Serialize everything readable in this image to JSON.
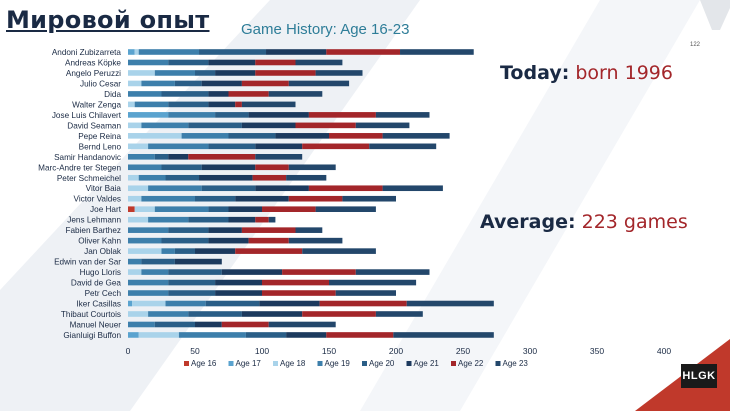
{
  "slide": {
    "title": "Мировой опыт",
    "page_number": "122",
    "logo_text": "HLGK"
  },
  "callouts": {
    "today_label": "Today:",
    "today_value": "born 1996",
    "average_label": "Average:",
    "average_value": "223 games"
  },
  "colors": {
    "accent_red": "#a3262a",
    "navy": "#1a2a44",
    "title_teal": "#2e7d98"
  },
  "chart_data": {
    "type": "bar",
    "orientation": "horizontal",
    "stacked": true,
    "title": "Game History: Age 16-23",
    "xlabel": "",
    "ylabel": "",
    "xlim": [
      0,
      400
    ],
    "xticks": [
      0,
      50,
      100,
      150,
      200,
      250,
      300,
      350,
      400
    ],
    "grid": false,
    "legend_position": "bottom",
    "series_names": [
      "Age 16",
      "Age 17",
      "Age 18",
      "Age 19",
      "Age 20",
      "Age 21",
      "Age 22",
      "Age 23"
    ],
    "series_colors": [
      "#c0392b",
      "#5aa3cf",
      "#a9d3ea",
      "#3d7fab",
      "#2a5e87",
      "#1c3a5e",
      "#a3262a",
      "#23476b"
    ],
    "categories": [
      "Andoni Zubizarreta",
      "Andreas Köpke",
      "Angelo Peruzzi",
      "Julio Cesar",
      "Dida",
      "Walter Zenga",
      "Jose Luis Chilavert",
      "David Seaman",
      "Pepe Reina",
      "Bernd Leno",
      "Samir Handanovic",
      "Marc-Andre ter Stegen",
      "Peter Schmeichel",
      "Vitor Baia",
      "Victor Valdes",
      "Joe Hart",
      "Jens Lehmann",
      "Fabien Barthez",
      "Oliver Kahn",
      "Jan Oblak",
      "Edwin van der Sar",
      "Hugo Lloris",
      "David de Gea",
      "Petr Cech",
      "Iker Casillas",
      "Thibaut Courtois",
      "Manuel Neuer",
      "Gianluigi Buffon"
    ],
    "series": [
      {
        "name": "Age 16",
        "values": [
          0,
          0,
          0,
          0,
          0,
          0,
          0,
          0,
          0,
          0,
          0,
          0,
          0,
          0,
          0,
          5,
          0,
          0,
          0,
          0,
          0,
          0,
          0,
          0,
          0,
          0,
          0,
          0
        ]
      },
      {
        "name": "Age 17",
        "values": [
          5,
          0,
          0,
          0,
          0,
          0,
          30,
          0,
          0,
          0,
          0,
          0,
          0,
          0,
          0,
          0,
          0,
          0,
          0,
          0,
          0,
          0,
          0,
          0,
          3,
          0,
          0,
          8
        ]
      },
      {
        "name": "Age 18",
        "values": [
          3,
          0,
          20,
          10,
          0,
          5,
          0,
          10,
          40,
          15,
          0,
          0,
          8,
          15,
          10,
          15,
          15,
          0,
          0,
          25,
          0,
          10,
          0,
          0,
          25,
          15,
          0,
          30
        ]
      },
      {
        "name": "Age 19",
        "values": [
          45,
          30,
          30,
          25,
          25,
          25,
          35,
          35,
          35,
          45,
          20,
          25,
          20,
          40,
          40,
          40,
          30,
          30,
          25,
          10,
          10,
          20,
          30,
          30,
          30,
          30,
          20,
          50
        ]
      },
      {
        "name": "Age 20",
        "values": [
          50,
          30,
          15,
          20,
          35,
          30,
          25,
          40,
          35,
          35,
          10,
          30,
          25,
          40,
          30,
          15,
          30,
          30,
          35,
          15,
          25,
          40,
          35,
          35,
          40,
          40,
          30,
          30
        ]
      },
      {
        "name": "Age 21",
        "values": [
          45,
          35,
          30,
          30,
          15,
          20,
          45,
          40,
          40,
          35,
          15,
          40,
          40,
          40,
          40,
          25,
          20,
          25,
          30,
          30,
          35,
          45,
          35,
          35,
          45,
          45,
          20,
          30
        ]
      },
      {
        "name": "Age 22",
        "values": [
          55,
          30,
          45,
          35,
          30,
          5,
          50,
          45,
          40,
          50,
          50,
          25,
          25,
          55,
          40,
          40,
          10,
          40,
          30,
          50,
          0,
          55,
          50,
          55,
          65,
          55,
          35,
          50
        ]
      },
      {
        "name": "Age 23",
        "values": [
          55,
          35,
          35,
          45,
          40,
          40,
          40,
          40,
          50,
          50,
          35,
          35,
          30,
          45,
          40,
          45,
          5,
          20,
          40,
          55,
          0,
          55,
          65,
          45,
          65,
          35,
          50,
          75
        ]
      }
    ]
  }
}
